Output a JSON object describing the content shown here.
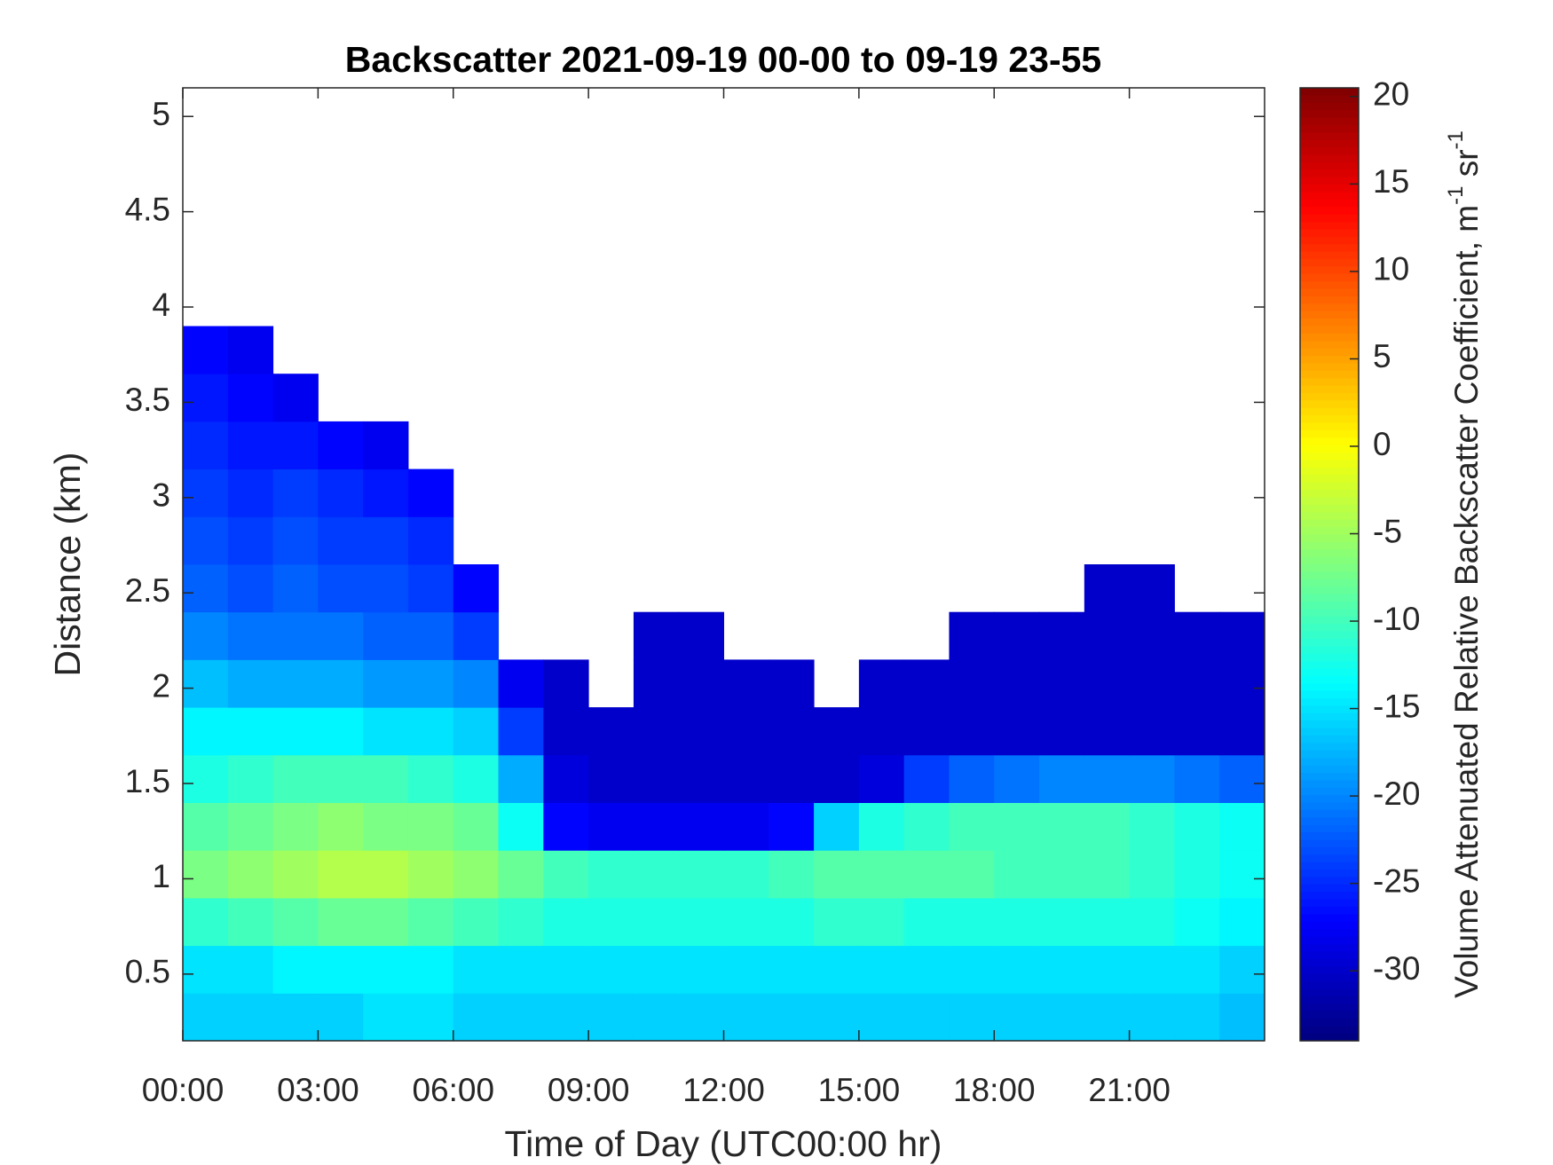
{
  "chart_data": {
    "type": "heatmap",
    "title": "Backscatter 2021-09-19 00-00 to 09-19 23-55",
    "xlabel": "Time of Day (UTC00:00 hr)",
    "ylabel": "Distance (km)",
    "colorbar_label": [
      "Volume Attenuated Relative Backscatter Coefficient, m",
      "-1",
      " sr",
      "-1"
    ],
    "colormap": "jet",
    "x": [
      0.5,
      1.5,
      2.5,
      3.5,
      4.5,
      5.5,
      6.5,
      7.5,
      8.5,
      9.5,
      10.5,
      11.5,
      12.5,
      13.5,
      14.5,
      15.5,
      16.5,
      17.5,
      18.5,
      19.5,
      20.5,
      21.5,
      22.5,
      23.5
    ],
    "y": [
      0.275,
      0.525,
      0.775,
      1.025,
      1.275,
      1.525,
      1.775,
      2.025,
      2.275,
      2.525,
      2.775,
      3.025,
      3.275,
      3.525,
      3.775,
      4.025,
      4.275,
      4.525,
      4.775,
      5.025
    ],
    "z": [
      [
        -16,
        -16,
        -16,
        -16,
        -15,
        -15,
        -16,
        -16,
        -16,
        -16,
        -16,
        -16,
        -16,
        -16,
        -16,
        -16,
        -16,
        -16,
        -16,
        -16,
        -16,
        -16,
        -16,
        -17
      ],
      [
        -15,
        -15,
        -14,
        -14,
        -14,
        -14,
        -15,
        -15,
        -15,
        -15,
        -15,
        -15,
        -15,
        -15,
        -15,
        -15,
        -15,
        -15,
        -15,
        -15,
        -15,
        -15,
        -15,
        -16
      ],
      [
        -11,
        -10,
        -9,
        -8,
        -8,
        -9,
        -10,
        -11,
        -12,
        -12,
        -12,
        -12,
        -12,
        -12,
        -11,
        -11,
        -12,
        -12,
        -12,
        -12,
        -12,
        -12,
        -13,
        -14
      ],
      [
        -7,
        -6,
        -5,
        -4,
        -4,
        -5,
        -6,
        -8,
        -10,
        -11,
        -11,
        -11,
        -11,
        -10,
        -9,
        -9,
        -9,
        -9,
        -10,
        -10,
        -10,
        -11,
        -12,
        -13
      ],
      [
        -9,
        -8,
        -7,
        -6,
        -7,
        -7,
        -8,
        -13,
        -27,
        -28,
        -28,
        -28,
        -28,
        -27,
        -16,
        -12,
        -11,
        -10,
        -10,
        -10,
        -10,
        -11,
        -12,
        -13
      ],
      [
        -12,
        -11,
        -10,
        -10,
        -10,
        -11,
        -12,
        -18,
        -29,
        -30,
        -30,
        -30,
        -30,
        -30,
        -30,
        -29,
        -24,
        -22,
        -21,
        -20,
        -20,
        -20,
        -21,
        -22
      ],
      [
        -14,
        -14,
        -14,
        -14,
        -15,
        -15,
        -16,
        -24,
        -30,
        -30,
        -30,
        -30,
        -30,
        -30,
        -30,
        -30,
        -30,
        -30,
        -30,
        -30,
        -30,
        -30,
        -30,
        -30
      ],
      [
        -17,
        -18,
        -18,
        -18,
        -19,
        -19,
        -20,
        -28,
        -30,
        null,
        -30,
        -30,
        -30,
        -30,
        null,
        -30,
        -30,
        -30,
        -30,
        -30,
        -30,
        -30,
        -30,
        -30
      ],
      [
        -20,
        -21,
        -21,
        -21,
        -22,
        -22,
        -24,
        null,
        null,
        null,
        -30,
        -30,
        null,
        null,
        null,
        null,
        null,
        -30,
        -30,
        -30,
        -30,
        -30,
        -30,
        -30
      ],
      [
        -22,
        -23,
        -22,
        -23,
        -23,
        -24,
        -27,
        null,
        null,
        null,
        null,
        null,
        null,
        null,
        null,
        null,
        null,
        null,
        null,
        null,
        -30,
        -30,
        null,
        null
      ],
      [
        -23,
        -24,
        -23,
        -24,
        -24,
        -25,
        null,
        null,
        null,
        null,
        null,
        null,
        null,
        null,
        null,
        null,
        null,
        null,
        null,
        null,
        null,
        null,
        null,
        null
      ],
      [
        -24,
        -25,
        -24,
        -25,
        -26,
        -27,
        null,
        null,
        null,
        null,
        null,
        null,
        null,
        null,
        null,
        null,
        null,
        null,
        null,
        null,
        null,
        null,
        null,
        null
      ],
      [
        -25,
        -26,
        -26,
        -27,
        -28,
        null,
        null,
        null,
        null,
        null,
        null,
        null,
        null,
        null,
        null,
        null,
        null,
        null,
        null,
        null,
        null,
        null,
        null,
        null
      ],
      [
        -26,
        -27,
        -28,
        null,
        null,
        null,
        null,
        null,
        null,
        null,
        null,
        null,
        null,
        null,
        null,
        null,
        null,
        null,
        null,
        null,
        null,
        null,
        null,
        null
      ],
      [
        -27,
        -28,
        null,
        null,
        null,
        null,
        null,
        null,
        null,
        null,
        null,
        null,
        null,
        null,
        null,
        null,
        null,
        null,
        null,
        null,
        null,
        null,
        null,
        null
      ],
      [
        null,
        null,
        null,
        null,
        null,
        null,
        null,
        null,
        null,
        null,
        null,
        null,
        null,
        null,
        null,
        null,
        null,
        null,
        null,
        null,
        null,
        null,
        null,
        null
      ],
      [
        null,
        null,
        null,
        null,
        null,
        null,
        null,
        null,
        null,
        null,
        null,
        null,
        null,
        null,
        null,
        null,
        null,
        null,
        null,
        null,
        null,
        null,
        null,
        null
      ],
      [
        null,
        null,
        null,
        null,
        null,
        null,
        null,
        null,
        null,
        null,
        null,
        null,
        null,
        null,
        null,
        null,
        null,
        null,
        null,
        null,
        null,
        null,
        null,
        null
      ],
      [
        null,
        null,
        null,
        null,
        null,
        null,
        null,
        null,
        null,
        null,
        null,
        null,
        null,
        null,
        null,
        null,
        null,
        null,
        null,
        null,
        null,
        null,
        null,
        null
      ],
      [
        null,
        null,
        null,
        null,
        null,
        null,
        null,
        null,
        null,
        null,
        null,
        null,
        null,
        null,
        null,
        null,
        null,
        null,
        null,
        null,
        null,
        null,
        null,
        null
      ]
    ],
    "xlim": [
      0,
      24
    ],
    "xticks": [
      {
        "value": 0,
        "label": "00:00"
      },
      {
        "value": 3,
        "label": "03:00"
      },
      {
        "value": 6,
        "label": "06:00"
      },
      {
        "value": 9,
        "label": "09:00"
      },
      {
        "value": 12,
        "label": "12:00"
      },
      {
        "value": 15,
        "label": "15:00"
      },
      {
        "value": 18,
        "label": "18:00"
      },
      {
        "value": 21,
        "label": "21:00"
      }
    ],
    "ylim": [
      0.15,
      5.15
    ],
    "yticks": [
      0.5,
      1,
      1.5,
      2,
      2.5,
      3,
      3.5,
      4,
      4.5,
      5
    ],
    "clim": [
      -34,
      20.5
    ],
    "cticks": [
      -30,
      -25,
      -20,
      -15,
      -10,
      -5,
      0,
      5,
      10,
      15,
      20
    ]
  }
}
